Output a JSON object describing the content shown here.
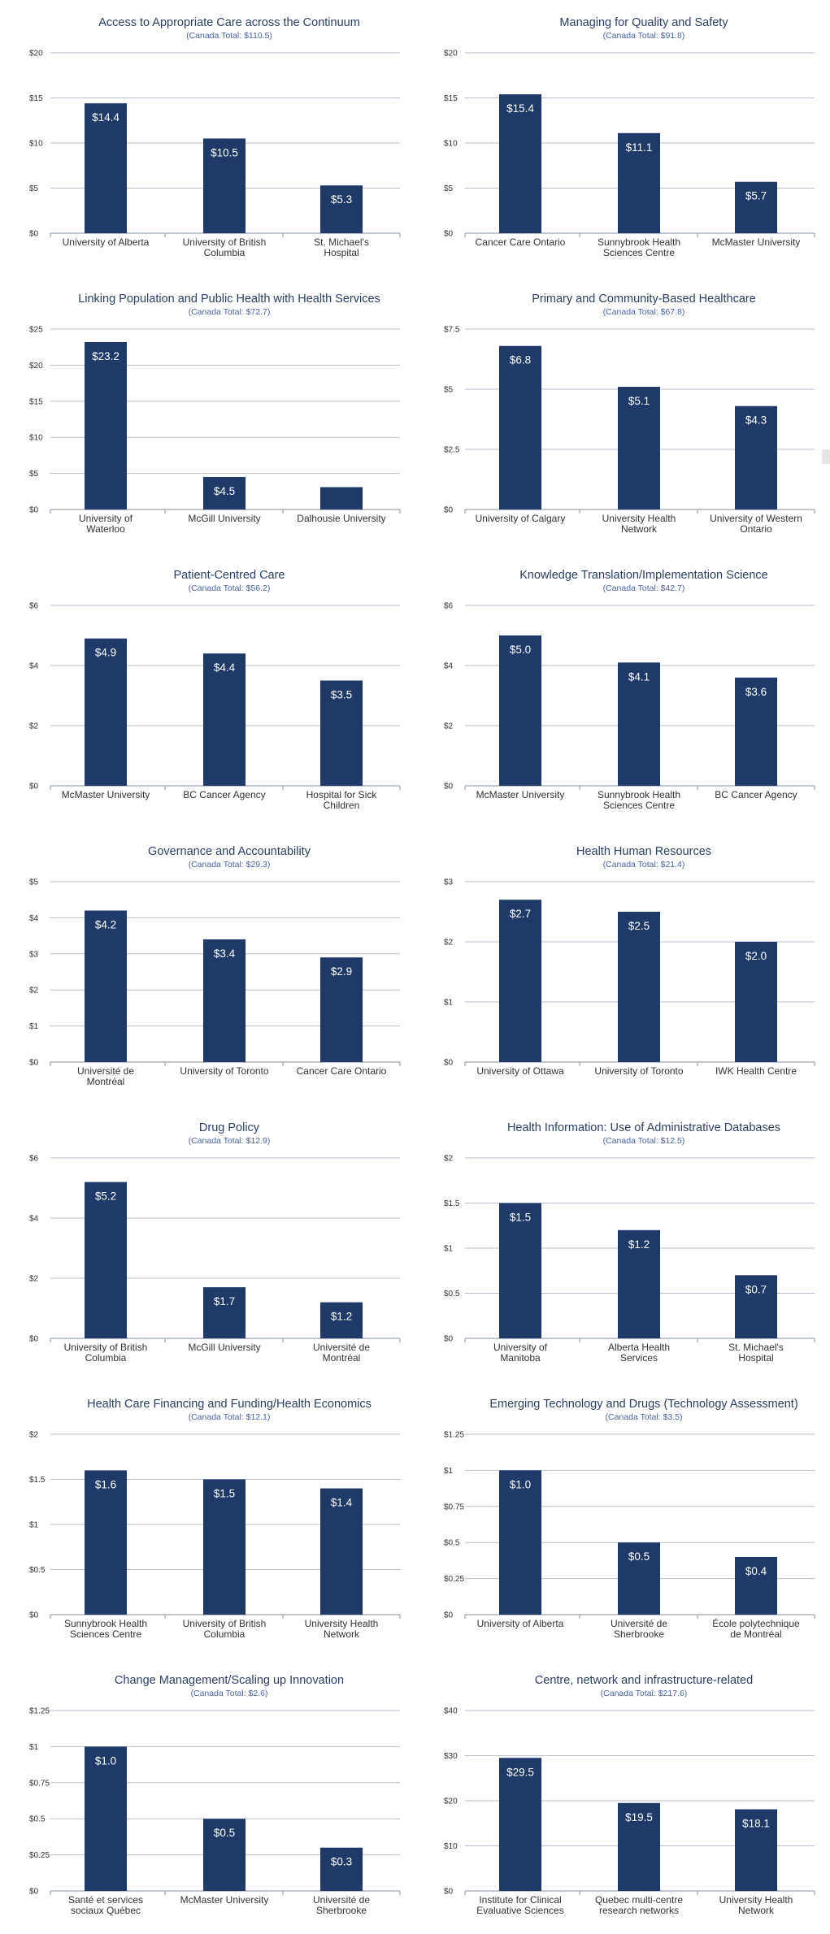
{
  "colors": {
    "bar": "#1f3a68",
    "title": "#2a3f66",
    "subtitle": "#4a63a8",
    "grid": "#b9c0cc"
  },
  "chart_data": [
    {
      "type": "bar",
      "title": "Access to Appropriate Care across the Continuum",
      "subtitle": "(Canada Total: $110.5)",
      "categories": [
        [
          "University of Alberta"
        ],
        [
          "University of British",
          "Columbia"
        ],
        [
          "St. Michael's",
          "Hospital"
        ]
      ],
      "values": [
        14.4,
        10.5,
        5.3
      ],
      "value_labels": [
        "$14.4",
        "$10.5",
        "$5.3"
      ],
      "ylim": [
        0,
        20
      ],
      "yticks": [
        0,
        5,
        10,
        15,
        20
      ],
      "ytick_labels": [
        "$0",
        "$5",
        "$10",
        "$15",
        "$20"
      ],
      "grid": true
    },
    {
      "type": "bar",
      "title": "Managing for Quality and Safety",
      "subtitle": "(Canada Total: $91.8)",
      "categories": [
        [
          "Cancer Care Ontario"
        ],
        [
          "Sunnybrook Health",
          "Sciences Centre"
        ],
        [
          "McMaster University"
        ]
      ],
      "values": [
        15.4,
        11.1,
        5.7
      ],
      "value_labels": [
        "$15.4",
        "$11.1",
        "$5.7"
      ],
      "ylim": [
        0,
        20
      ],
      "yticks": [
        0,
        5,
        10,
        15,
        20
      ],
      "ytick_labels": [
        "$0",
        "$5",
        "$10",
        "$15",
        "$20"
      ],
      "grid": true
    },
    {
      "type": "bar",
      "title": "Linking Population and Public Health with Health Services",
      "subtitle": "(Canada Total: $72.7)",
      "categories": [
        [
          "University of",
          "Waterloo"
        ],
        [
          "McGill University"
        ],
        [
          "Dalhousie University"
        ]
      ],
      "values": [
        23.2,
        4.5,
        3.1
      ],
      "value_labels": [
        "$23.2",
        "$4.5",
        ""
      ],
      "ylim": [
        0,
        25
      ],
      "yticks": [
        0,
        5,
        10,
        15,
        20,
        25
      ],
      "ytick_labels": [
        "$0",
        "$5",
        "$10",
        "$15",
        "$20",
        "$25"
      ],
      "grid": true
    },
    {
      "type": "bar",
      "title": "Primary and Community-Based Healthcare",
      "subtitle": "(Canada Total: $67.8)",
      "categories": [
        [
          "University of Calgary"
        ],
        [
          "University Health",
          "Network"
        ],
        [
          "University of Western",
          "Ontario"
        ]
      ],
      "values": [
        6.8,
        5.1,
        4.3
      ],
      "value_labels": [
        "$6.8",
        "$5.1",
        "$4.3"
      ],
      "ylim": [
        0,
        7.5
      ],
      "yticks": [
        0,
        2.5,
        5,
        7.5
      ],
      "ytick_labels": [
        "$0",
        "$2.5",
        "$5",
        "$7.5"
      ],
      "grid": true
    },
    {
      "type": "bar",
      "title": "Patient-Centred Care",
      "subtitle": "(Canada Total: $56.2)",
      "categories": [
        [
          "McMaster University"
        ],
        [
          "BC Cancer Agency"
        ],
        [
          "Hospital for Sick",
          "Children"
        ]
      ],
      "values": [
        4.9,
        4.4,
        3.5
      ],
      "value_labels": [
        "$4.9",
        "$4.4",
        "$3.5"
      ],
      "ylim": [
        0,
        6
      ],
      "yticks": [
        0,
        2,
        4,
        6
      ],
      "ytick_labels": [
        "$0",
        "$2",
        "$4",
        "$6"
      ],
      "grid": true
    },
    {
      "type": "bar",
      "title": "Knowledge Translation/Implementation Science",
      "subtitle": "(Canada Total: $42.7)",
      "categories": [
        [
          "McMaster University"
        ],
        [
          "Sunnybrook Health",
          "Sciences Centre"
        ],
        [
          "BC Cancer Agency"
        ]
      ],
      "values": [
        5.0,
        4.1,
        3.6
      ],
      "value_labels": [
        "$5.0",
        "$4.1",
        "$3.6"
      ],
      "ylim": [
        0,
        6
      ],
      "yticks": [
        0,
        2,
        4,
        6
      ],
      "ytick_labels": [
        "$0",
        "$2",
        "$4",
        "$6"
      ],
      "grid": true
    },
    {
      "type": "bar",
      "title": "Governance and Accountability",
      "subtitle": "(Canada Total: $29.3)",
      "categories": [
        [
          "Université de",
          "Montréal"
        ],
        [
          "University of Toronto"
        ],
        [
          "Cancer Care Ontario"
        ]
      ],
      "values": [
        4.2,
        3.4,
        2.9
      ],
      "value_labels": [
        "$4.2",
        "$3.4",
        "$2.9"
      ],
      "ylim": [
        0,
        5
      ],
      "yticks": [
        0,
        1,
        2,
        3,
        4,
        5
      ],
      "ytick_labels": [
        "$0",
        "$1",
        "$2",
        "$3",
        "$4",
        "$5"
      ],
      "grid": true
    },
    {
      "type": "bar",
      "title": "Health Human Resources",
      "subtitle": "(Canada Total: $21.4)",
      "categories": [
        [
          "University of Ottawa"
        ],
        [
          "University of Toronto"
        ],
        [
          "IWK Health Centre"
        ]
      ],
      "values": [
        2.7,
        2.5,
        2.0
      ],
      "value_labels": [
        "$2.7",
        "$2.5",
        "$2.0"
      ],
      "ylim": [
        0,
        3
      ],
      "yticks": [
        0,
        1,
        2,
        3
      ],
      "ytick_labels": [
        "$0",
        "$1",
        "$2",
        "$3"
      ],
      "grid": true
    },
    {
      "type": "bar",
      "title": "Drug Policy",
      "subtitle": "(Canada Total: $12.9)",
      "categories": [
        [
          "University of British",
          "Columbia"
        ],
        [
          "McGill University"
        ],
        [
          "Université de",
          "Montréal"
        ]
      ],
      "values": [
        5.2,
        1.7,
        1.2
      ],
      "value_labels": [
        "$5.2",
        "$1.7",
        "$1.2"
      ],
      "ylim": [
        0,
        6
      ],
      "yticks": [
        0,
        2,
        4,
        6
      ],
      "ytick_labels": [
        "$0",
        "$2",
        "$4",
        "$6"
      ],
      "grid": true
    },
    {
      "type": "bar",
      "title": "Health Information: Use of Administrative Databases",
      "subtitle": "(Canada Total: $12.5)",
      "categories": [
        [
          "University of",
          "Manitoba"
        ],
        [
          "Alberta Health",
          "Services"
        ],
        [
          "St. Michael's",
          "Hospital"
        ]
      ],
      "values": [
        1.5,
        1.2,
        0.7
      ],
      "value_labels": [
        "$1.5",
        "$1.2",
        "$0.7"
      ],
      "ylim": [
        0,
        2
      ],
      "yticks": [
        0,
        0.5,
        1,
        1.5,
        2
      ],
      "ytick_labels": [
        "$0",
        "$0.5",
        "$1",
        "$1.5",
        "$2"
      ],
      "grid": true
    },
    {
      "type": "bar",
      "title": "Health Care Financing and Funding/Health Economics",
      "subtitle": "(Canada Total: $12.1)",
      "categories": [
        [
          "Sunnybrook Health",
          "Sciences Centre"
        ],
        [
          "University of British",
          "Columbia"
        ],
        [
          "University Health",
          "Network"
        ]
      ],
      "values": [
        1.6,
        1.5,
        1.4
      ],
      "value_labels": [
        "$1.6",
        "$1.5",
        "$1.4"
      ],
      "ylim": [
        0,
        2
      ],
      "yticks": [
        0,
        0.5,
        1,
        1.5,
        2
      ],
      "ytick_labels": [
        "$0",
        "$0.5",
        "$1",
        "$1.5",
        "$2"
      ],
      "grid": true
    },
    {
      "type": "bar",
      "title": "Emerging Technology and Drugs (Technology Assessment)",
      "subtitle": "(Canada Total: $3.5)",
      "categories": [
        [
          "University of Alberta"
        ],
        [
          "Université de",
          "Sherbrooke"
        ],
        [
          "École polytechnique",
          "de Montréal"
        ]
      ],
      "values": [
        1.0,
        0.5,
        0.4
      ],
      "value_labels": [
        "$1.0",
        "$0.5",
        "$0.4"
      ],
      "ylim": [
        0,
        1.25
      ],
      "yticks": [
        0,
        0.25,
        0.5,
        0.75,
        1,
        1.25
      ],
      "ytick_labels": [
        "$0",
        "$0.25",
        "$0.5",
        "$0.75",
        "$1",
        "$1.25"
      ],
      "grid": true
    },
    {
      "type": "bar",
      "title": "Change Management/Scaling up Innovation",
      "subtitle": "(Canada Total: $2.6)",
      "categories": [
        [
          "Santé et services",
          "sociaux Québec"
        ],
        [
          "McMaster University"
        ],
        [
          "Université de",
          "Sherbrooke"
        ]
      ],
      "values": [
        1.0,
        0.5,
        0.3
      ],
      "value_labels": [
        "$1.0",
        "$0.5",
        "$0.3"
      ],
      "ylim": [
        0,
        1.25
      ],
      "yticks": [
        0,
        0.25,
        0.5,
        0.75,
        1,
        1.25
      ],
      "ytick_labels": [
        "$0",
        "$0.25",
        "$0.5",
        "$0.75",
        "$1",
        "$1.25"
      ],
      "grid": true
    },
    {
      "type": "bar",
      "title": "Centre, network and infrastructure-related",
      "subtitle": "(Canada Total: $217.6)",
      "categories": [
        [
          "Institute for Clinical",
          "Evaluative Sciences"
        ],
        [
          "Quebec multi-centre",
          "research networks"
        ],
        [
          "University Health",
          "Network"
        ]
      ],
      "values": [
        29.5,
        19.5,
        18.1
      ],
      "value_labels": [
        "$29.5",
        "$19.5",
        "$18.1"
      ],
      "ylim": [
        0,
        40
      ],
      "yticks": [
        0,
        10,
        20,
        30,
        40
      ],
      "ytick_labels": [
        "$0",
        "$10",
        "$20",
        "$30",
        "$40"
      ],
      "grid": true
    }
  ]
}
